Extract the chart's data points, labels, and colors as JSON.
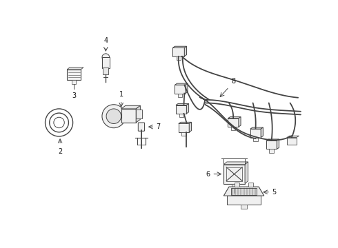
{
  "bg_color": "#ffffff",
  "line_color": "#444444",
  "label_color": "#111111",
  "fig_w": 4.9,
  "fig_h": 3.6,
  "dpi": 100,
  "xlim": [
    0,
    490
  ],
  "ylim": [
    0,
    360
  ]
}
